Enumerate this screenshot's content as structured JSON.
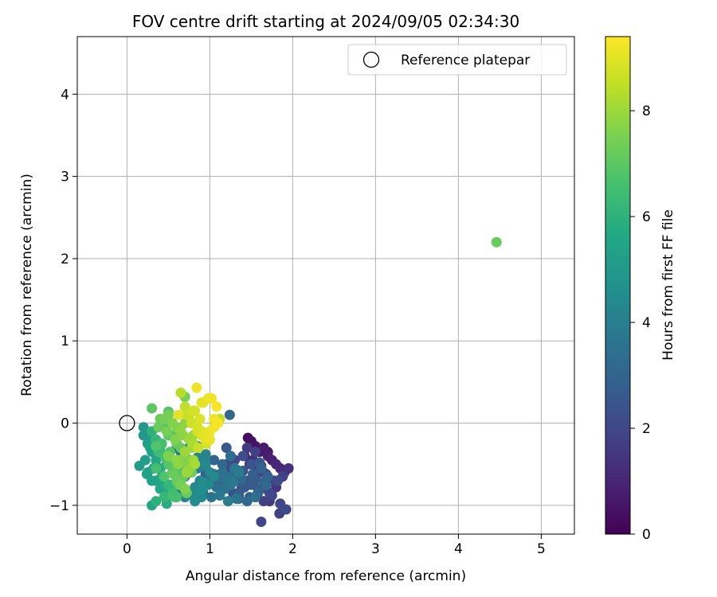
{
  "chart_data": {
    "type": "scatter",
    "title": "FOV centre drift starting at 2024/09/05 02:34:30",
    "xlabel": "Angular distance from reference (arcmin)",
    "ylabel": "Rotation from reference (arcmin)",
    "xlim": [
      -0.6,
      5.4
    ],
    "ylim": [
      -1.35,
      4.7
    ],
    "x_ticks": [
      0,
      1,
      2,
      3,
      4,
      5
    ],
    "y_ticks": [
      -1,
      0,
      1,
      2,
      3,
      4
    ],
    "grid": true,
    "legend": {
      "position": "top-right",
      "entries": [
        "Reference platepar"
      ]
    },
    "reference_point": {
      "x": 0,
      "y": 0,
      "label": "Reference platepar"
    },
    "colorbar": {
      "label": "Hours from first FF file",
      "range": [
        0,
        9.4
      ],
      "ticks": [
        0,
        2,
        4,
        6,
        8
      ],
      "colormap": "viridis"
    },
    "series": [
      {
        "x": [
          1.46,
          1.5,
          1.55,
          1.6,
          1.65,
          1.7,
          1.75,
          1.8,
          1.85,
          1.9,
          1.95,
          1.48,
          1.58,
          1.68,
          1.78,
          1.88,
          1.52,
          1.62,
          1.72,
          1.82,
          1.55,
          1.65,
          1.75,
          1.85,
          1.92,
          1.6,
          1.7,
          1.8,
          1.42,
          1.52,
          1.62,
          1.72,
          1.84,
          1.62,
          1.7,
          1.2,
          1.25,
          1.3,
          1.35,
          1.4,
          1.45,
          1.5,
          1.55,
          1.6,
          1.65,
          1.7,
          1.28,
          1.38,
          1.48,
          1.58,
          1.68,
          1.22,
          1.32,
          1.42,
          1.52,
          1.62,
          1.3,
          1.4,
          1.5,
          1.6,
          1.45,
          1.55,
          1.35,
          1.45,
          1.55,
          1.65,
          1.25,
          1.35,
          0.9,
          0.95,
          1.0,
          1.05,
          1.1,
          1.15,
          1.2,
          1.25,
          1.3,
          1.35,
          0.98,
          1.08,
          1.18,
          1.28,
          1.38,
          0.92,
          1.02,
          1.12,
          1.22,
          1.32,
          1.05,
          1.15,
          1.25,
          0.95,
          1.05,
          1.15,
          1.25,
          1.35,
          1.2,
          1.24,
          0.6,
          0.65,
          0.7,
          0.75,
          0.8,
          0.85,
          0.9,
          0.95,
          1.0,
          1.05,
          0.68,
          0.78,
          0.88,
          0.98,
          0.62,
          0.72,
          0.82,
          0.92,
          0.7,
          0.8,
          0.9,
          0.75,
          0.85,
          0.95,
          0.65,
          0.75,
          0.85,
          0.95,
          0.82,
          0.9,
          0.6,
          0.7,
          0.2,
          0.25,
          0.3,
          0.35,
          0.4,
          0.45,
          0.5,
          0.55,
          0.6,
          0.28,
          0.38,
          0.48,
          0.58,
          0.22,
          0.32,
          0.42,
          0.52,
          0.3,
          0.4,
          0.5,
          0.35,
          0.45,
          0.55,
          0.25,
          0.35,
          0.45,
          0.55,
          0.4,
          0.5,
          0.3,
          0.2,
          0.15,
          0.24,
          0.3,
          0.48,
          0.58,
          0.4,
          0.3,
          0.35,
          0.4,
          0.45,
          0.5,
          0.55,
          0.6,
          0.65,
          0.7,
          0.75,
          0.8,
          0.38,
          0.48,
          0.58,
          0.68,
          0.78,
          0.42,
          0.52,
          0.62,
          0.72,
          0.5,
          0.6,
          0.7,
          0.45,
          0.55,
          0.65,
          0.75,
          0.35,
          0.45,
          0.55,
          0.65,
          0.75,
          0.62,
          0.72,
          0.55,
          0.65,
          0.3,
          0.4,
          0.5,
          0.6,
          0.7,
          0.8,
          0.9,
          0.38,
          0.48,
          0.58,
          0.68,
          0.78,
          0.45,
          0.55,
          0.65,
          0.75,
          0.85,
          0.5,
          0.6,
          0.7,
          0.8,
          0.62,
          0.72,
          0.82,
          0.35,
          0.7,
          0.56,
          0.5,
          0.68,
          0.65,
          0.7,
          0.75,
          0.8,
          0.85,
          0.9,
          0.95,
          1.0,
          1.05,
          1.1,
          0.72,
          0.82,
          0.92,
          1.02,
          0.78,
          0.88,
          0.98,
          1.08,
          0.85,
          0.95,
          1.05,
          0.9,
          1.0,
          0.8,
          0.9,
          1.0,
          0.86,
          0.96,
          0.62,
          0.84,
          1.12,
          4.46
        ],
        "y": [
          -0.18,
          -0.22,
          -0.28,
          -0.35,
          -0.3,
          -0.4,
          -0.45,
          -0.5,
          -0.55,
          -0.6,
          -0.55,
          -0.5,
          -0.55,
          -0.62,
          -0.7,
          -0.65,
          -0.75,
          -0.8,
          -0.85,
          -0.7,
          -0.9,
          -0.95,
          -0.88,
          -0.98,
          -1.05,
          -0.6,
          -0.7,
          -0.78,
          -0.4,
          -0.45,
          -0.52,
          -0.95,
          -1.1,
          -1.2,
          -0.35,
          -0.5,
          -0.55,
          -0.6,
          -0.65,
          -0.58,
          -0.7,
          -0.75,
          -0.68,
          -0.8,
          -0.72,
          -0.65,
          -0.85,
          -0.8,
          -0.9,
          -0.85,
          -0.75,
          -0.62,
          -0.7,
          -0.78,
          -0.62,
          -0.55,
          -0.45,
          -0.4,
          -0.5,
          -0.48,
          -0.3,
          -0.35,
          -0.92,
          -0.95,
          -0.9,
          -0.6,
          -0.4,
          -0.88,
          -0.5,
          -0.55,
          -0.6,
          -0.62,
          -0.65,
          -0.6,
          -0.7,
          -0.75,
          -0.55,
          -0.6,
          -0.7,
          -0.78,
          -0.8,
          -0.72,
          -0.68,
          -0.85,
          -0.9,
          -0.88,
          -0.95,
          -0.92,
          -0.45,
          -0.5,
          -0.4,
          -0.62,
          -0.68,
          -0.72,
          -0.65,
          -0.58,
          -0.3,
          0.1,
          -0.3,
          -0.35,
          -0.4,
          -0.45,
          -0.5,
          -0.55,
          -0.52,
          -0.48,
          -0.6,
          -0.65,
          -0.62,
          -0.58,
          -0.7,
          -0.75,
          -0.8,
          -0.85,
          -0.78,
          -0.72,
          -0.9,
          -0.88,
          -0.82,
          -0.45,
          -0.42,
          -0.5,
          -0.35,
          -0.3,
          -0.28,
          -0.38,
          -0.95,
          -0.9,
          -0.55,
          -0.65,
          -0.15,
          -0.25,
          -0.35,
          -0.45,
          -0.55,
          -0.65,
          -0.75,
          -0.85,
          -0.9,
          -0.3,
          -0.4,
          -0.5,
          -0.6,
          -0.45,
          -0.55,
          -0.65,
          -0.75,
          -0.7,
          -0.8,
          -0.85,
          -0.95,
          -0.9,
          -0.6,
          -0.6,
          -0.7,
          -0.75,
          -0.5,
          -0.35,
          -0.45,
          -0.2,
          -0.05,
          -0.52,
          -0.62,
          -1.0,
          -0.98,
          -0.9,
          -0.35,
          -0.1,
          -0.2,
          -0.3,
          -0.4,
          -0.5,
          -0.6,
          -0.7,
          -0.75,
          -0.8,
          -0.55,
          -0.45,
          -0.35,
          -0.45,
          -0.55,
          -0.65,
          -0.6,
          -0.25,
          -0.35,
          -0.45,
          -0.55,
          -0.15,
          -0.25,
          -0.4,
          -0.05,
          -0.15,
          -0.3,
          -0.5,
          -0.55,
          -0.65,
          -0.5,
          -0.7,
          -0.6,
          -0.75,
          -0.85,
          -0.88,
          -0.62,
          0.18,
          0.05,
          0.1,
          -0.05,
          0.0,
          -0.15,
          -0.1,
          -0.05,
          -0.1,
          -0.2,
          -0.15,
          -0.3,
          0.05,
          0.0,
          -0.1,
          -0.2,
          -0.3,
          -0.4,
          -0.45,
          -0.35,
          -0.25,
          -0.5,
          -0.6,
          -0.5,
          -0.28,
          0.32,
          -0.62,
          0.14,
          -0.45,
          0.37,
          0.2,
          0.1,
          0.0,
          -0.05,
          -0.1,
          -0.15,
          -0.2,
          0.05,
          0.0,
          0.1,
          0.15,
          0.25,
          0.3,
          0.0,
          0.05,
          0.3,
          0.2,
          -0.1,
          -0.2,
          -0.05,
          -0.15,
          -0.1,
          0.15,
          0.25,
          0.3,
          -0.3,
          -0.25,
          0.1,
          0.43,
          0.05,
          2.2
        ],
        "hours": [
          0.3,
          0.4,
          0.5,
          0.6,
          0.7,
          0.8,
          0.9,
          1.0,
          1.1,
          1.2,
          1.3,
          1.4,
          1.5,
          1.6,
          1.7,
          1.8,
          1.9,
          2.0,
          2.1,
          2.2,
          1.7,
          1.8,
          1.9,
          2.0,
          2.1,
          1.2,
          1.3,
          1.4,
          1.0,
          1.2,
          1.4,
          1.6,
          1.8,
          2.0,
          0.6,
          2.0,
          2.1,
          2.2,
          2.3,
          2.4,
          2.5,
          2.6,
          2.7,
          2.8,
          2.9,
          3.0,
          2.4,
          2.6,
          2.8,
          3.0,
          3.2,
          2.2,
          2.4,
          2.6,
          2.8,
          3.0,
          2.0,
          2.2,
          2.4,
          2.6,
          1.6,
          1.8,
          3.0,
          3.2,
          3.4,
          2.0,
          2.6,
          2.8,
          3.0,
          3.1,
          3.2,
          3.3,
          3.4,
          3.5,
          3.6,
          3.7,
          3.8,
          3.9,
          3.2,
          3.4,
          3.6,
          3.8,
          3.2,
          3.4,
          3.6,
          3.8,
          4.0,
          3.6,
          3.0,
          3.2,
          3.4,
          2.8,
          3.0,
          3.2,
          3.4,
          3.0,
          2.6,
          3.2,
          3.5,
          3.6,
          3.7,
          3.8,
          3.9,
          4.0,
          4.1,
          4.2,
          4.3,
          4.4,
          3.8,
          4.0,
          4.2,
          4.4,
          4.0,
          4.2,
          4.4,
          4.6,
          4.2,
          4.4,
          4.6,
          4.0,
          4.2,
          4.4,
          3.6,
          3.8,
          4.0,
          4.2,
          4.6,
          4.4,
          4.0,
          4.2,
          5.0,
          5.2,
          5.4,
          5.6,
          5.8,
          6.0,
          6.2,
          6.4,
          6.6,
          5.4,
          5.6,
          5.8,
          6.0,
          5.2,
          5.4,
          5.6,
          5.8,
          5.4,
          5.6,
          5.8,
          6.0,
          6.2,
          6.4,
          5.2,
          5.4,
          5.6,
          5.8,
          5.6,
          5.8,
          5.2,
          5.0,
          5.2,
          5.4,
          5.6,
          5.8,
          6.0,
          6.2,
          6.0,
          6.2,
          6.4,
          6.6,
          6.8,
          7.0,
          7.2,
          7.4,
          7.6,
          7.8,
          8.0,
          6.4,
          6.6,
          6.8,
          7.0,
          7.2,
          6.6,
          6.8,
          7.0,
          7.2,
          7.0,
          7.2,
          7.4,
          6.8,
          7.0,
          7.2,
          7.4,
          6.6,
          6.8,
          7.0,
          7.2,
          7.4,
          7.0,
          7.2,
          6.6,
          6.8,
          7.0,
          7.2,
          7.4,
          7.6,
          7.8,
          8.0,
          8.2,
          7.2,
          7.4,
          7.6,
          7.8,
          8.0,
          7.4,
          7.6,
          7.8,
          8.0,
          8.2,
          7.6,
          7.8,
          8.0,
          8.2,
          7.8,
          8.0,
          8.2,
          6.8,
          7.4,
          7.2,
          6.8,
          7.6,
          8.4,
          8.5,
          8.6,
          8.7,
          8.8,
          8.9,
          9.0,
          9.1,
          9.2,
          9.3,
          8.6,
          8.8,
          9.0,
          9.2,
          8.7,
          8.9,
          9.1,
          9.3,
          8.8,
          9.0,
          9.2,
          8.9,
          9.1,
          8.8,
          9.0,
          9.2,
          8.6,
          8.8,
          9.0,
          9.2,
          8.5,
          7.2
        ]
      }
    ]
  }
}
